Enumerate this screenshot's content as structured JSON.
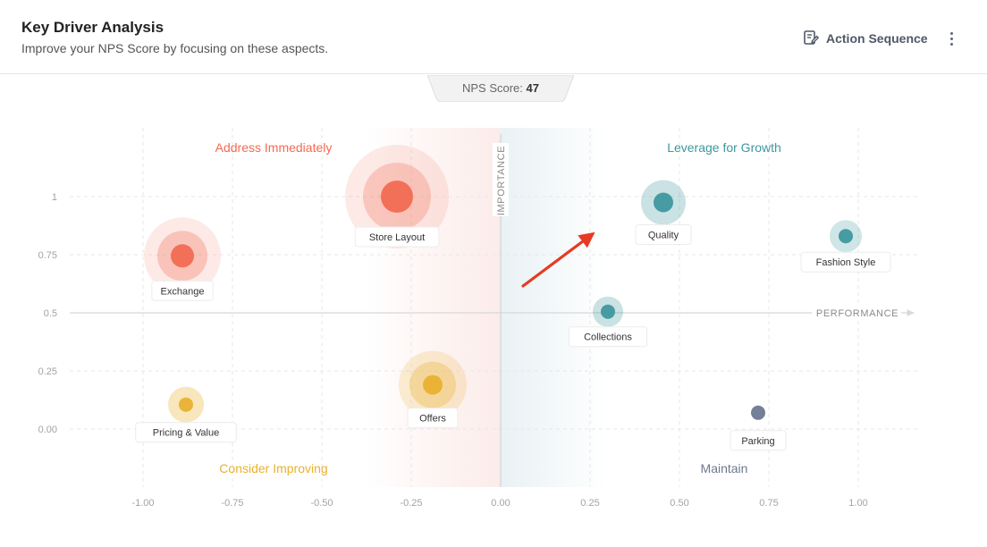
{
  "header": {
    "title": "Key Driver Analysis",
    "subtitle": "Improve your NPS Score by focusing on these aspects.",
    "action_label": "Action Sequence"
  },
  "nps": {
    "label": "NPS Score:",
    "value": "47"
  },
  "quadrants": {
    "top_left": "Address Immediately",
    "top_right": "Leverage for Growth",
    "bottom_left": "Consider Improving",
    "bottom_right": "Maintain"
  },
  "colors": {
    "red": "#f26b52",
    "teal": "#3f979f",
    "gold": "#e9b130",
    "slate": "#6e7891",
    "arrow": "#e63b22"
  },
  "chart_data": {
    "type": "scatter",
    "xlabel": "PERFORMANCE",
    "ylabel": "IMPORTANCE",
    "xlim": [
      -1.0,
      1.0
    ],
    "ylim": [
      0.0,
      1.0
    ],
    "x_ticks": [
      "-1.00",
      "-0.75",
      "-0.50",
      "-0.25",
      "0.00",
      "0.25",
      "0.50",
      "0.75",
      "1.00"
    ],
    "y_ticks": [
      "0.00",
      "0.25",
      "0.5",
      "0.75",
      "1"
    ],
    "grid": true,
    "points": [
      {
        "name": "Exchange",
        "x": -0.89,
        "y": 0.745,
        "color": "red",
        "rings": 3
      },
      {
        "name": "Store Layout",
        "x": -0.29,
        "y": 1.0,
        "color": "red",
        "rings": 3
      },
      {
        "name": "Quality",
        "x": 0.455,
        "y": 0.975,
        "color": "teal",
        "rings": 2
      },
      {
        "name": "Fashion Style",
        "x": 0.965,
        "y": 0.83,
        "color": "teal",
        "rings": 2
      },
      {
        "name": "Collections",
        "x": 0.3,
        "y": 0.505,
        "color": "teal",
        "rings": 2
      },
      {
        "name": "Offers",
        "x": -0.19,
        "y": 0.19,
        "color": "gold",
        "rings": 3
      },
      {
        "name": "Pricing & Value",
        "x": -0.88,
        "y": 0.105,
        "color": "gold",
        "rings": 2
      },
      {
        "name": "Parking",
        "x": 0.72,
        "y": 0.07,
        "color": "slate",
        "rings": 1
      }
    ]
  }
}
